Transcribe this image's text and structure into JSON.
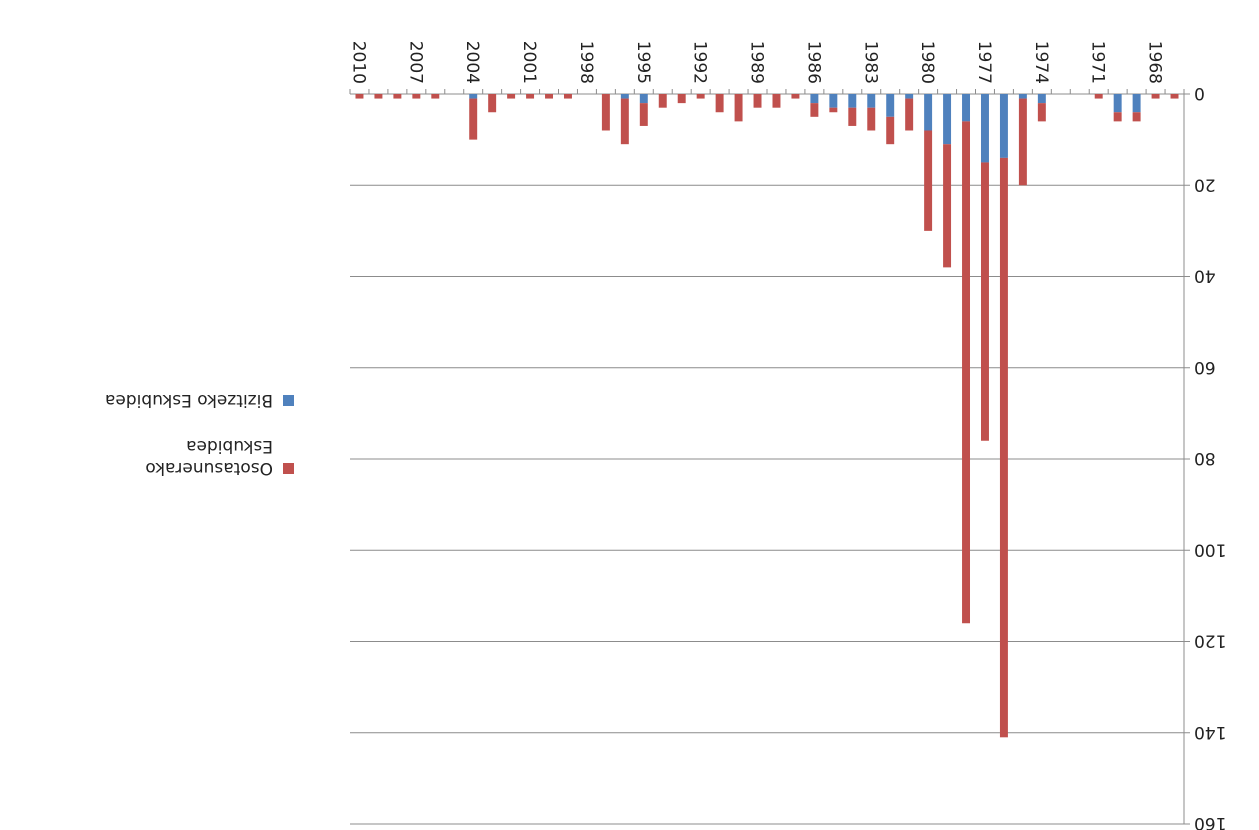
{
  "chart_data": {
    "type": "bar",
    "orientation": "vertical-upside-down",
    "rendering": "image rotated 180 degrees",
    "stacked": true,
    "x": [
      1967,
      1968,
      1969,
      1970,
      1971,
      1972,
      1973,
      1974,
      1975,
      1976,
      1977,
      1978,
      1979,
      1980,
      1981,
      1982,
      1983,
      1984,
      1985,
      1986,
      1987,
      1988,
      1989,
      1990,
      1991,
      1992,
      1993,
      1994,
      1995,
      1996,
      1997,
      1998,
      1999,
      2000,
      2001,
      2002,
      2003,
      2004,
      2005,
      2006,
      2007,
      2008,
      2009,
      2010
    ],
    "x_tick_labels": [
      "1968",
      "1971",
      "1974",
      "1977",
      "1980",
      "1983",
      "1986",
      "1989",
      "1992",
      "1995",
      "1998",
      "2001",
      "2004",
      "2007",
      "2010"
    ],
    "series": [
      {
        "name": "Bizitzeko Eskubidea",
        "color": "#4f81bd",
        "values": [
          0,
          0,
          4,
          4,
          0,
          0,
          0,
          2,
          1,
          14,
          15,
          6,
          11,
          8,
          1,
          5,
          3,
          3,
          3,
          2,
          0,
          0,
          0,
          0,
          0,
          0,
          0,
          0,
          2,
          1,
          0,
          0,
          0,
          0,
          0,
          0,
          0,
          1,
          0,
          0,
          0,
          0,
          0,
          0
        ]
      },
      {
        "name": "Osotasunerako Eskubidea",
        "color": "#c0504d",
        "values": [
          1,
          1,
          2,
          2,
          1,
          0,
          0,
          4,
          19,
          127,
          61,
          110,
          27,
          22,
          7,
          6,
          5,
          4,
          1,
          3,
          1,
          3,
          3,
          6,
          4,
          1,
          2,
          3,
          5,
          10,
          8,
          0,
          1,
          1,
          1,
          1,
          4,
          9,
          0,
          1,
          1,
          1,
          1,
          1
        ]
      }
    ],
    "ylim": [
      0,
      160
    ],
    "y_ticks": [
      0,
      20,
      40,
      60,
      80,
      100,
      120,
      140,
      160
    ],
    "grid": true,
    "legend": "right",
    "title": "",
    "xlabel": "",
    "ylabel": ""
  },
  "legend": {
    "items": [
      {
        "label_lines": [
          "Bizitzeko Eskubidea"
        ],
        "color": "#4f81bd"
      },
      {
        "label_lines": [
          "Osotasunerako",
          "Eskubidea"
        ],
        "color": "#c0504d"
      }
    ]
  }
}
